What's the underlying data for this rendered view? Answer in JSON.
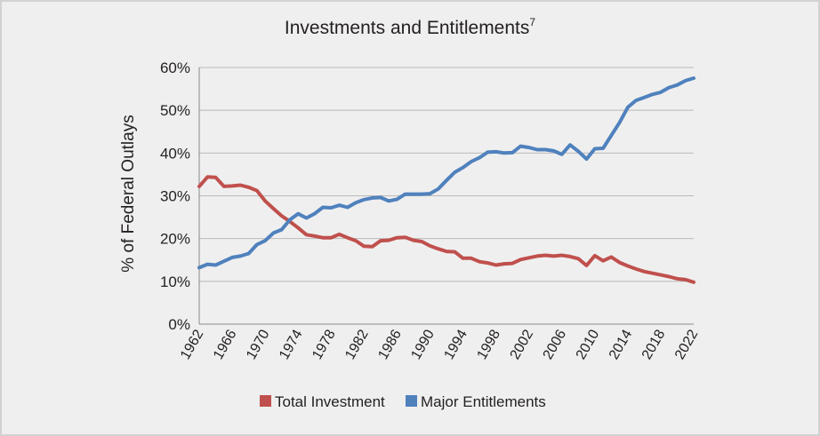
{
  "colors": {
    "background": "#efefef",
    "grid": "#b9b9b9",
    "axis": "#888888",
    "total_investment": "#c0504d",
    "major_entitlements": "#4f81bd"
  },
  "chart_data": {
    "type": "line",
    "title": "Investments and Entitlements",
    "title_superscript": "7",
    "ylabel": "% of Federal Outlays",
    "xlabel": "",
    "ylim": [
      0,
      60
    ],
    "xlim": [
      1962,
      2022
    ],
    "grid": true,
    "legend_position": "bottom",
    "yticks": [
      {
        "value": 0,
        "label": "0%"
      },
      {
        "value": 10,
        "label": "10%"
      },
      {
        "value": 20,
        "label": "20%"
      },
      {
        "value": 30,
        "label": "30%"
      },
      {
        "value": 40,
        "label": "40%"
      },
      {
        "value": 50,
        "label": "50%"
      },
      {
        "value": 60,
        "label": "60%"
      }
    ],
    "xticks": [
      "1962",
      "1966",
      "1970",
      "1974",
      "1978",
      "1982",
      "1986",
      "1990",
      "1994",
      "1998",
      "2002",
      "2006",
      "2010",
      "2014",
      "2018",
      "2022"
    ],
    "x": [
      1962,
      1963,
      1964,
      1965,
      1966,
      1967,
      1968,
      1969,
      1970,
      1971,
      1972,
      1973,
      1974,
      1975,
      1976,
      1977,
      1978,
      1979,
      1980,
      1981,
      1982,
      1983,
      1984,
      1985,
      1986,
      1987,
      1988,
      1989,
      1990,
      1991,
      1992,
      1993,
      1994,
      1995,
      1996,
      1997,
      1998,
      1999,
      2000,
      2001,
      2002,
      2003,
      2004,
      2005,
      2006,
      2007,
      2008,
      2009,
      2010,
      2011,
      2012,
      2013,
      2014,
      2015,
      2016,
      2017,
      2018,
      2019,
      2020,
      2021,
      2022
    ],
    "series": [
      {
        "name": "Total Investment",
        "color": "#c0504d",
        "values": [
          32.2,
          34.4,
          34.3,
          32.2,
          32.3,
          32.5,
          32.0,
          31.2,
          28.8,
          27.0,
          25.3,
          24.0,
          22.5,
          20.9,
          20.6,
          20.2,
          20.2,
          21.0,
          20.2,
          19.5,
          18.2,
          18.1,
          19.5,
          19.6,
          20.2,
          20.3,
          19.6,
          19.3,
          18.3,
          17.6,
          17.0,
          16.9,
          15.4,
          15.4,
          14.6,
          14.3,
          13.8,
          14.1,
          14.2,
          15.1,
          15.5,
          15.9,
          16.1,
          15.9,
          16.1,
          15.8,
          15.3,
          13.7,
          16.0,
          14.8,
          15.7,
          14.4,
          13.6,
          12.9,
          12.3,
          11.9,
          11.5,
          11.1,
          10.6,
          10.4,
          9.8
        ]
      },
      {
        "name": "Major Entitlements",
        "color": "#4f81bd",
        "values": [
          13.2,
          14.0,
          13.8,
          14.7,
          15.6,
          15.9,
          16.5,
          18.6,
          19.5,
          21.3,
          22.1,
          24.4,
          25.8,
          24.8,
          25.8,
          27.3,
          27.2,
          27.8,
          27.3,
          28.4,
          29.1,
          29.5,
          29.6,
          28.8,
          29.2,
          30.4,
          30.4,
          30.4,
          30.5,
          31.6,
          33.6,
          35.5,
          36.6,
          38.0,
          38.9,
          40.2,
          40.3,
          40.0,
          40.1,
          41.6,
          41.3,
          40.8,
          40.8,
          40.5,
          39.7,
          41.9,
          40.4,
          38.6,
          41.0,
          41.1,
          44.1,
          47.1,
          50.7,
          52.3,
          53.0,
          53.7,
          54.2,
          55.3,
          55.9,
          56.9,
          57.5
        ]
      }
    ]
  }
}
